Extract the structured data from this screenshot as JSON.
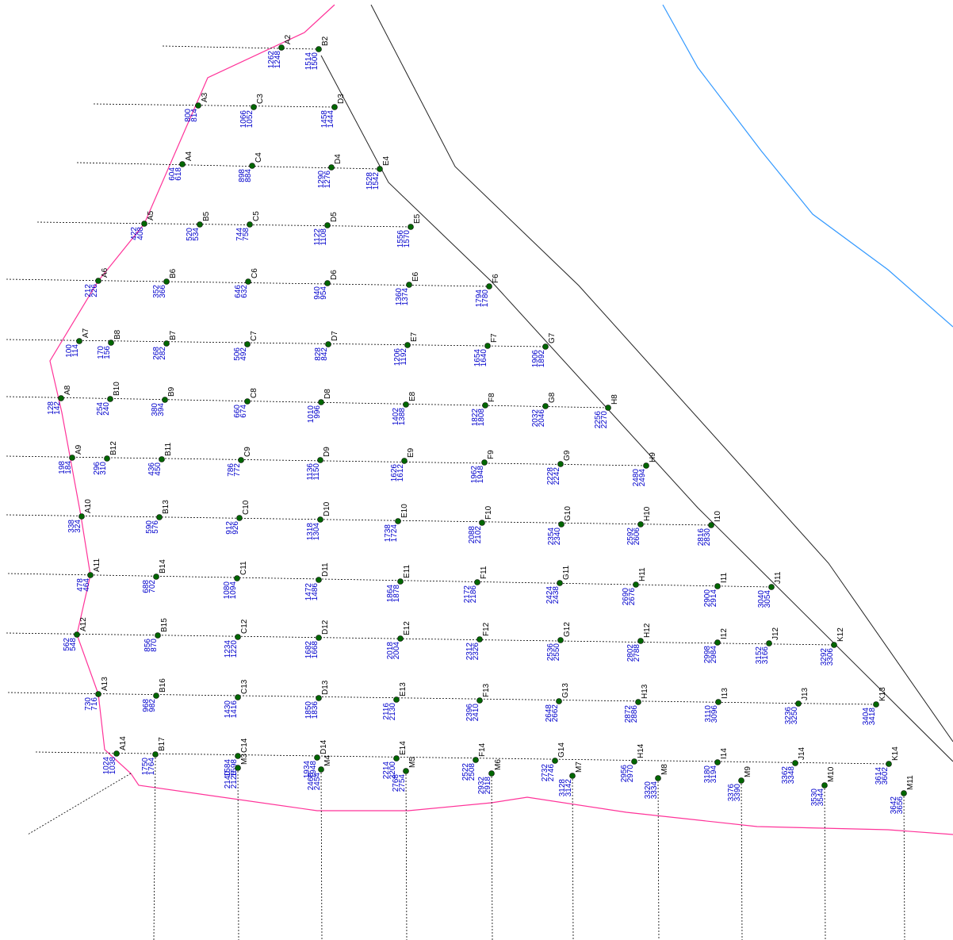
{
  "points": [
    {
      "label": "A2",
      "values": [
        1262,
        1248
      ]
    },
    {
      "label": "B2",
      "values": [
        1514,
        1500
      ]
    },
    {
      "label": "A3",
      "values": [
        800,
        814
      ]
    },
    {
      "label": "C3",
      "values": [
        1066,
        1052
      ]
    },
    {
      "label": "D3",
      "values": [
        1458,
        1444
      ]
    },
    {
      "label": "A4",
      "values": [
        604,
        618
      ]
    },
    {
      "label": "C4",
      "values": [
        898,
        884
      ]
    },
    {
      "label": "D4",
      "values": [
        1290,
        1276
      ]
    },
    {
      "label": "E4",
      "values": [
        1528,
        1542
      ]
    },
    {
      "label": "A5",
      "values": [
        422,
        408
      ]
    },
    {
      "label": "B5",
      "values": [
        520,
        534
      ]
    },
    {
      "label": "C5",
      "values": [
        744,
        758
      ]
    },
    {
      "label": "D5",
      "values": [
        1122,
        1108
      ]
    },
    {
      "label": "E5",
      "values": [
        1556,
        1570
      ]
    },
    {
      "label": "A6",
      "values": [
        212,
        226
      ]
    },
    {
      "label": "B6",
      "values": [
        352,
        366
      ]
    },
    {
      "label": "C6",
      "values": [
        646,
        632
      ]
    },
    {
      "label": "D6",
      "values": [
        940,
        954
      ]
    },
    {
      "label": "E6",
      "values": [
        1360,
        1374
      ]
    },
    {
      "label": "F6",
      "values": [
        1794,
        1780
      ]
    },
    {
      "label": "A7",
      "values": [
        100,
        114
      ]
    },
    {
      "label": "B8",
      "values": [
        170,
        156
      ]
    },
    {
      "label": "B7",
      "values": [
        268,
        282
      ]
    },
    {
      "label": "C7",
      "values": [
        506,
        492
      ]
    },
    {
      "label": "D7",
      "values": [
        828,
        842
      ]
    },
    {
      "label": "E7",
      "values": [
        1206,
        1192
      ]
    },
    {
      "label": "F7",
      "values": [
        1654,
        1640
      ]
    },
    {
      "label": "G7",
      "values": [
        1906,
        1892
      ]
    },
    {
      "label": "A8",
      "values": [
        128,
        142
      ]
    },
    {
      "label": "B10",
      "values": [
        254,
        240
      ]
    },
    {
      "label": "B9",
      "values": [
        380,
        394
      ]
    },
    {
      "label": "C8",
      "values": [
        660,
        674
      ]
    },
    {
      "label": "D8",
      "values": [
        1010,
        996
      ]
    },
    {
      "label": "E8",
      "values": [
        1402,
        1388
      ]
    },
    {
      "label": "F8",
      "values": [
        1822,
        1808
      ]
    },
    {
      "label": "G8",
      "values": [
        2032,
        2046
      ]
    },
    {
      "label": "H8",
      "values": [
        2256,
        2270
      ]
    },
    {
      "label": "A9",
      "values": [
        198,
        184
      ]
    },
    {
      "label": "B12",
      "values": [
        296,
        310
      ]
    },
    {
      "label": "B11",
      "values": [
        436,
        450
      ]
    },
    {
      "label": "C9",
      "values": [
        786,
        772
      ]
    },
    {
      "label": "D9",
      "values": [
        1136,
        1150
      ]
    },
    {
      "label": "E9",
      "values": [
        1626,
        1612
      ]
    },
    {
      "label": "F9",
      "values": [
        1962,
        1948
      ]
    },
    {
      "label": "G9",
      "values": [
        2228,
        2242
      ]
    },
    {
      "label": "H9",
      "values": [
        2480,
        2494
      ]
    },
    {
      "label": "A10",
      "values": [
        338,
        324
      ]
    },
    {
      "label": "B13",
      "values": [
        590,
        576
      ]
    },
    {
      "label": "C10",
      "values": [
        912,
        926
      ]
    },
    {
      "label": "D10",
      "values": [
        1318,
        1304
      ]
    },
    {
      "label": "E10",
      "values": [
        1738,
        1724
      ]
    },
    {
      "label": "F10",
      "values": [
        2088,
        2102
      ]
    },
    {
      "label": "G10",
      "values": [
        2354,
        2340
      ]
    },
    {
      "label": "H10",
      "values": [
        2592,
        2606
      ]
    },
    {
      "label": "I10",
      "values": [
        2816,
        2830
      ]
    },
    {
      "label": "A11",
      "values": [
        478,
        464
      ]
    },
    {
      "label": "B14",
      "values": [
        688,
        702
      ]
    },
    {
      "label": "C11",
      "values": [
        1080,
        1094
      ]
    },
    {
      "label": "D11",
      "values": [
        1472,
        1486
      ]
    },
    {
      "label": "E11",
      "values": [
        1864,
        1878
      ]
    },
    {
      "label": "F11",
      "values": [
        2172,
        2186
      ]
    },
    {
      "label": "G11",
      "values": [
        2424,
        2438
      ]
    },
    {
      "label": "H11",
      "values": [
        2690,
        2676
      ]
    },
    {
      "label": "I11",
      "values": [
        2900,
        2914
      ]
    },
    {
      "label": "J11",
      "values": [
        3040,
        3054
      ]
    },
    {
      "label": "A12",
      "values": [
        562,
        548
      ]
    },
    {
      "label": "B15",
      "values": [
        856,
        870
      ]
    },
    {
      "label": "C12",
      "values": [
        1234,
        1220
      ]
    },
    {
      "label": "D12",
      "values": [
        1682,
        1668
      ]
    },
    {
      "label": "E12",
      "values": [
        2018,
        2004
      ]
    },
    {
      "label": "F12",
      "values": [
        2312,
        2326
      ]
    },
    {
      "label": "G12",
      "values": [
        2536,
        2550
      ]
    },
    {
      "label": "H12",
      "values": [
        2802,
        2788
      ]
    },
    {
      "label": "I12",
      "values": [
        2998,
        2984
      ]
    },
    {
      "label": "J12",
      "values": [
        3152,
        3166
      ]
    },
    {
      "label": "K12",
      "values": [
        3292,
        3306
      ]
    },
    {
      "label": "A13",
      "values": [
        730,
        716
      ]
    },
    {
      "label": "B16",
      "values": [
        968,
        982
      ]
    },
    {
      "label": "C13",
      "values": [
        1430,
        1416
      ]
    },
    {
      "label": "D13",
      "values": [
        1850,
        1836
      ]
    },
    {
      "label": "E13",
      "values": [
        2116,
        2130
      ]
    },
    {
      "label": "F13",
      "values": [
        2396,
        2410
      ]
    },
    {
      "label": "G13",
      "values": [
        2648,
        2662
      ]
    },
    {
      "label": "H13",
      "values": [
        2872,
        2886
      ]
    },
    {
      "label": "I13",
      "values": [
        3110,
        3096
      ]
    },
    {
      "label": "J13",
      "values": [
        3236,
        3250
      ]
    },
    {
      "label": "K13",
      "values": [
        3404,
        3418
      ]
    },
    {
      "label": "A14",
      "values": [
        1024,
        1038
      ]
    },
    {
      "label": "B17",
      "values": [
        1750,
        1764
      ]
    },
    {
      "label": "C14",
      "values": [
        1584,
        1598
      ]
    },
    {
      "label": "D14",
      "values": [
        1934,
        1948
      ]
    },
    {
      "label": "E14",
      "values": [
        2214,
        2200
      ]
    },
    {
      "label": "F14",
      "values": [
        2522,
        2508
      ]
    },
    {
      "label": "G14",
      "values": [
        2732,
        2746
      ]
    },
    {
      "label": "H14",
      "values": [
        2956,
        2970
      ]
    },
    {
      "label": "I14",
      "values": [
        3180,
        3194
      ]
    },
    {
      "label": "J14",
      "values": [
        3362,
        3348
      ]
    },
    {
      "label": "K14",
      "values": [
        3614,
        3602
      ]
    },
    {
      "label": "M3",
      "values": [
        2140,
        2126
      ]
    },
    {
      "label": "M4",
      "values": [
        2468,
        2454
      ]
    },
    {
      "label": "M5",
      "values": [
        2768,
        2754
      ]
    },
    {
      "label": "M6",
      "values": [
        2932,
        2918
      ]
    },
    {
      "label": "M7",
      "values": [
        3128,
        3142
      ]
    },
    {
      "label": "M8",
      "values": [
        3320,
        3334
      ]
    },
    {
      "label": "M9",
      "values": [
        3376,
        3390
      ]
    },
    {
      "label": "M10",
      "values": [
        3530,
        3544
      ]
    },
    {
      "label": "M11",
      "values": [
        3642,
        3656
      ]
    }
  ]
}
